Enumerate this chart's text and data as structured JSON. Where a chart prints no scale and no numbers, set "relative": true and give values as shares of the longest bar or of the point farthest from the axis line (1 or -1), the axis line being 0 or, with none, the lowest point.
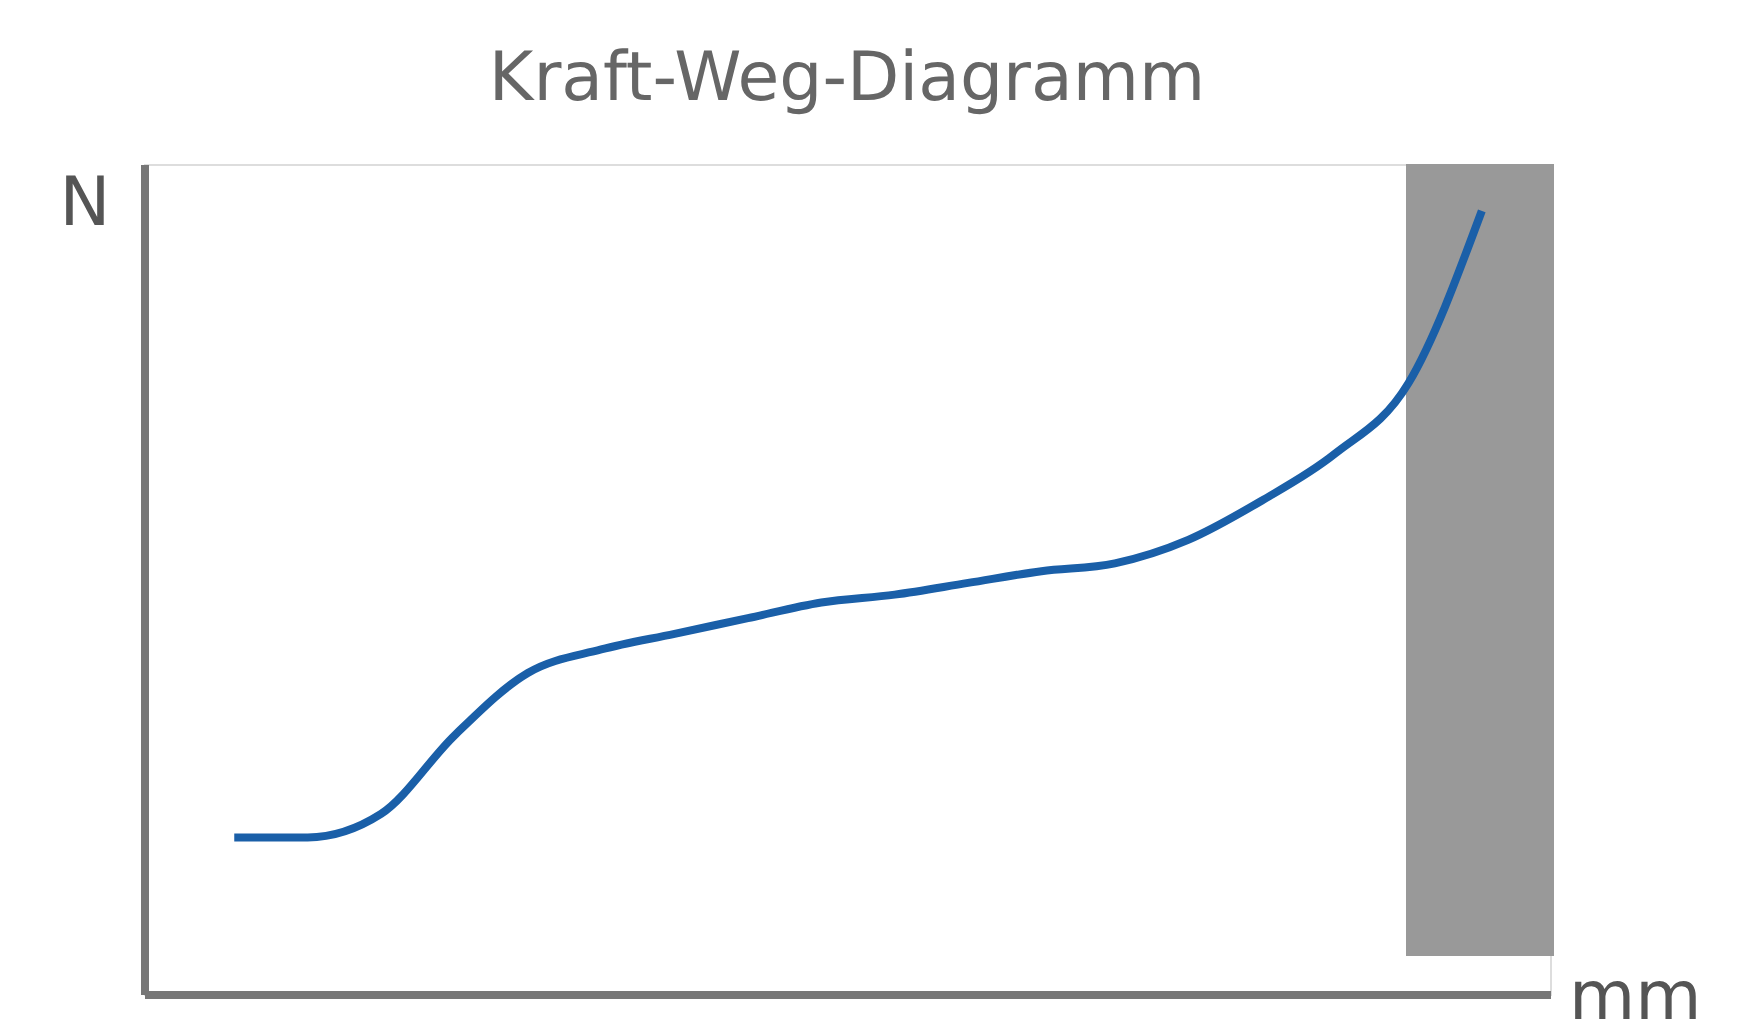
{
  "chart_data": {
    "type": "line",
    "title": "Kraft-Weg-Diagramm",
    "xlabel": "mm",
    "ylabel": "N",
    "relative": true,
    "categories": [
      null,
      null,
      null,
      null,
      null,
      null,
      null,
      null,
      null,
      null,
      null,
      null,
      null,
      null,
      null,
      null,
      null,
      null
    ],
    "series": [
      {
        "color": "#1a5fa8",
        "values": [
          0.2,
          0.2,
          0.23,
          0.33,
          0.41,
          0.44,
          0.46,
          0.48,
          0.5,
          0.51,
          0.525,
          0.54,
          0.55,
          0.58,
          0.63,
          0.69,
          0.78,
          1.0
        ]
      }
    ],
    "tick_labels": false,
    "grid": false,
    "marker": "none",
    "line_style": "solid"
  }
}
